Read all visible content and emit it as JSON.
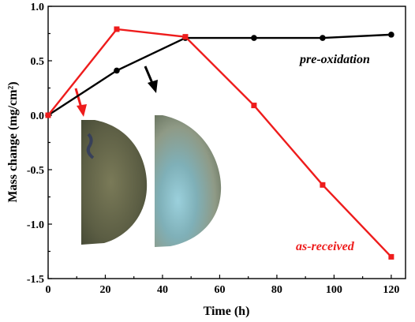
{
  "chart_data": {
    "type": "line",
    "xlabel": "Time (h)",
    "ylabel": "Mass change (mg/cm²)",
    "xlim": [
      0,
      125
    ],
    "ylim": [
      -1.5,
      1.0
    ],
    "xticks": [
      0,
      20,
      40,
      60,
      80,
      100,
      120
    ],
    "yticks": [
      1.0,
      0.5,
      0.0,
      -0.5,
      -1.0,
      -1.5
    ],
    "ytick_labels": [
      "1.0",
      "0.5",
      "0.0",
      "-0.5",
      "-1.0",
      "-1.5"
    ],
    "series": [
      {
        "name": "pre-oxidation",
        "color": "#000000",
        "marker": "circle",
        "x": [
          0,
          24,
          48,
          72,
          96,
          120
        ],
        "values": [
          0.0,
          0.41,
          0.71,
          0.71,
          0.71,
          0.74
        ]
      },
      {
        "name": "as-received",
        "color": "#ee1c1c",
        "marker": "square",
        "x": [
          0,
          24,
          48,
          72,
          96,
          120
        ],
        "values": [
          0.0,
          0.79,
          0.72,
          0.09,
          -0.64,
          -1.3
        ]
      }
    ],
    "annotations": [
      {
        "text": "pre-oxidation",
        "color": "#000000"
      },
      {
        "text": "as-received",
        "color": "#ee1c1c"
      }
    ],
    "insets": [
      "red-arrow",
      "black-arrow",
      "as-received-sample-photo",
      "pre-oxidation-sample-photo"
    ],
    "grid": false
  }
}
